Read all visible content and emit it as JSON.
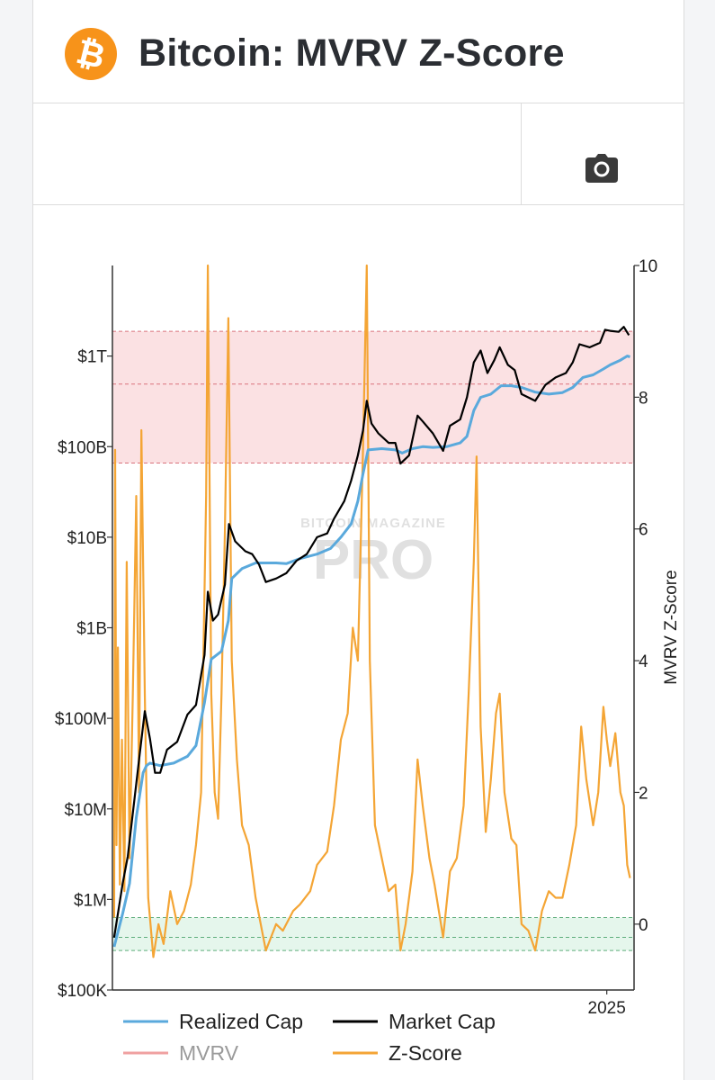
{
  "header": {
    "title": "Bitcoin: MVRV Z-Score",
    "logo_icon": "bitcoin-logo-icon",
    "logo_glyph": "₿"
  },
  "toolbar": {
    "camera_icon": "camera-icon"
  },
  "colors": {
    "realized": "#5aa9dc",
    "market": "#000000",
    "mvrv": "#f0a0a0",
    "zscore": "#f4a535",
    "red_zone": "#fbe1e3",
    "green_zone": "#e5f6ec",
    "btc_orange": "#f7931a"
  },
  "watermark": {
    "line1": "BITCOIN MAGAZINE",
    "line2": "PRO"
  },
  "chart_data": {
    "type": "line",
    "title": "Bitcoin: MVRV Z-Score",
    "left_axis": {
      "scale": "log",
      "range": [
        100000,
        10000000000000
      ],
      "ticks": [
        {
          "value": 100000,
          "label": "$100K"
        },
        {
          "value": 1000000,
          "label": "$1M"
        },
        {
          "value": 10000000,
          "label": "$10M"
        },
        {
          "value": 100000000,
          "label": "$100M"
        },
        {
          "value": 1000000000,
          "label": "$1B"
        },
        {
          "value": 10000000000,
          "label": "$10B"
        },
        {
          "value": 100000000000,
          "label": "$100B"
        },
        {
          "value": 1000000000000,
          "label": "$1T"
        }
      ]
    },
    "right_axis": {
      "label": "MVRV Z-Score",
      "range": [
        -1,
        10
      ],
      "ticks": [
        {
          "value": 0,
          "label": "0"
        },
        {
          "value": 2,
          "label": "2"
        },
        {
          "value": 4,
          "label": "4"
        },
        {
          "value": 6,
          "label": "6"
        },
        {
          "value": 8,
          "label": "8"
        },
        {
          "value": 10,
          "label": "10"
        }
      ]
    },
    "x_axis": {
      "range": [
        2010.5,
        2025.8
      ],
      "ticks": [
        {
          "value": 2025,
          "label": "2025"
        }
      ]
    },
    "bands": [
      {
        "name": "overvalued-zone",
        "z_from": 7,
        "z_to": 9,
        "mid": 8.2,
        "color": "red"
      },
      {
        "name": "undervalued-zone",
        "z_from": -0.4,
        "z_to": 0.1,
        "mid": -0.2,
        "color": "green"
      }
    ],
    "legend": [
      {
        "name": "Realized Cap",
        "color": "#5aa9dc"
      },
      {
        "name": "Market Cap",
        "color": "#000000"
      },
      {
        "name": "MVRV",
        "color": "#f0a0a0"
      },
      {
        "name": "Z-Score",
        "color": "#f4a535"
      }
    ],
    "series": [
      {
        "name": "Market Cap",
        "points": [
          [
            2010.55,
            380000
          ],
          [
            2010.8,
            1500000
          ],
          [
            2010.95,
            3000000
          ],
          [
            2011.1,
            9000000
          ],
          [
            2011.3,
            40000000
          ],
          [
            2011.45,
            120000000
          ],
          [
            2011.6,
            60000000
          ],
          [
            2011.75,
            25000000
          ],
          [
            2011.9,
            25000000
          ],
          [
            2012.1,
            45000000
          ],
          [
            2012.4,
            55000000
          ],
          [
            2012.7,
            110000000
          ],
          [
            2012.95,
            140000000
          ],
          [
            2013.2,
            500000000
          ],
          [
            2013.3,
            2500000000
          ],
          [
            2013.45,
            1200000000
          ],
          [
            2013.6,
            1400000000
          ],
          [
            2013.8,
            3000000000
          ],
          [
            2013.92,
            14000000000
          ],
          [
            2014.1,
            9000000000
          ],
          [
            2014.4,
            7000000000
          ],
          [
            2014.6,
            6500000000
          ],
          [
            2014.8,
            5000000000
          ],
          [
            2015.0,
            3200000000
          ],
          [
            2015.3,
            3500000000
          ],
          [
            2015.6,
            4000000000
          ],
          [
            2015.9,
            5500000000
          ],
          [
            2016.2,
            6500000000
          ],
          [
            2016.5,
            10000000000
          ],
          [
            2016.8,
            11000000000
          ],
          [
            2017.0,
            16000000000
          ],
          [
            2017.3,
            25000000000
          ],
          [
            2017.5,
            42000000000
          ],
          [
            2017.7,
            80000000000
          ],
          [
            2017.85,
            150000000000
          ],
          [
            2017.96,
            320000000000
          ],
          [
            2018.1,
            180000000000
          ],
          [
            2018.3,
            140000000000
          ],
          [
            2018.6,
            110000000000
          ],
          [
            2018.8,
            110000000000
          ],
          [
            2018.95,
            65000000000
          ],
          [
            2019.2,
            80000000000
          ],
          [
            2019.45,
            220000000000
          ],
          [
            2019.6,
            190000000000
          ],
          [
            2019.9,
            140000000000
          ],
          [
            2020.2,
            90000000000
          ],
          [
            2020.4,
            170000000000
          ],
          [
            2020.7,
            200000000000
          ],
          [
            2020.9,
            350000000000
          ],
          [
            2021.1,
            850000000000
          ],
          [
            2021.3,
            1150000000000
          ],
          [
            2021.5,
            650000000000
          ],
          [
            2021.7,
            900000000000
          ],
          [
            2021.86,
            1250000000000
          ],
          [
            2022.1,
            800000000000
          ],
          [
            2022.3,
            700000000000
          ],
          [
            2022.5,
            380000000000
          ],
          [
            2022.9,
            320000000000
          ],
          [
            2023.2,
            480000000000
          ],
          [
            2023.5,
            580000000000
          ],
          [
            2023.8,
            650000000000
          ],
          [
            2024.0,
            850000000000
          ],
          [
            2024.2,
            1350000000000
          ],
          [
            2024.5,
            1250000000000
          ],
          [
            2024.8,
            1400000000000
          ],
          [
            2024.95,
            1950000000000
          ],
          [
            2025.1,
            1900000000000
          ],
          [
            2025.35,
            1850000000000
          ],
          [
            2025.5,
            2100000000000
          ],
          [
            2025.65,
            1700000000000
          ]
        ]
      },
      {
        "name": "Realized Cap",
        "points": [
          [
            2010.55,
            300000
          ],
          [
            2010.8,
            700000
          ],
          [
            2011.0,
            1500000
          ],
          [
            2011.2,
            8000000
          ],
          [
            2011.4,
            25000000
          ],
          [
            2011.5,
            30000000
          ],
          [
            2011.6,
            32000000
          ],
          [
            2011.9,
            30000000
          ],
          [
            2012.3,
            32000000
          ],
          [
            2012.7,
            38000000
          ],
          [
            2012.95,
            50000000
          ],
          [
            2013.2,
            150000000
          ],
          [
            2013.4,
            450000000
          ],
          [
            2013.7,
            550000000
          ],
          [
            2013.9,
            1200000000
          ],
          [
            2014.0,
            3500000000
          ],
          [
            2014.3,
            4500000000
          ],
          [
            2014.7,
            5200000000
          ],
          [
            2015.3,
            5200000000
          ],
          [
            2015.6,
            5100000000
          ],
          [
            2016.0,
            5800000000
          ],
          [
            2016.5,
            6500000000
          ],
          [
            2016.9,
            7500000000
          ],
          [
            2017.2,
            10000000000
          ],
          [
            2017.5,
            14000000000
          ],
          [
            2017.7,
            25000000000
          ],
          [
            2017.85,
            50000000000
          ],
          [
            2018.0,
            92000000000
          ],
          [
            2018.4,
            95000000000
          ],
          [
            2018.8,
            92000000000
          ],
          [
            2019.0,
            85000000000
          ],
          [
            2019.3,
            95000000000
          ],
          [
            2019.6,
            100000000000
          ],
          [
            2019.9,
            98000000000
          ],
          [
            2020.3,
            100000000000
          ],
          [
            2020.7,
            110000000000
          ],
          [
            2020.9,
            130000000000
          ],
          [
            2021.1,
            250000000000
          ],
          [
            2021.3,
            350000000000
          ],
          [
            2021.6,
            380000000000
          ],
          [
            2021.9,
            470000000000
          ],
          [
            2022.2,
            470000000000
          ],
          [
            2022.5,
            450000000000
          ],
          [
            2022.9,
            400000000000
          ],
          [
            2023.3,
            380000000000
          ],
          [
            2023.7,
            395000000000
          ],
          [
            2024.0,
            450000000000
          ],
          [
            2024.3,
            580000000000
          ],
          [
            2024.6,
            620000000000
          ],
          [
            2024.9,
            720000000000
          ],
          [
            2025.1,
            800000000000
          ],
          [
            2025.4,
            900000000000
          ],
          [
            2025.6,
            1000000000000
          ],
          [
            2025.68,
            980000000000
          ]
        ]
      },
      {
        "name": "Z-Score",
        "points": [
          [
            2010.55,
            0.1
          ],
          [
            2010.58,
            7.2
          ],
          [
            2010.62,
            1.2
          ],
          [
            2010.66,
            4.2
          ],
          [
            2010.72,
            0.6
          ],
          [
            2010.78,
            2.8
          ],
          [
            2010.85,
            0.5
          ],
          [
            2010.92,
            5.5
          ],
          [
            2011.0,
            1.0
          ],
          [
            2011.1,
            3.5
          ],
          [
            2011.2,
            6.5
          ],
          [
            2011.28,
            2.0
          ],
          [
            2011.35,
            7.5
          ],
          [
            2011.45,
            3.5
          ],
          [
            2011.55,
            0.4
          ],
          [
            2011.7,
            -0.5
          ],
          [
            2011.85,
            0.0
          ],
          [
            2012.0,
            -0.3
          ],
          [
            2012.2,
            0.5
          ],
          [
            2012.4,
            0.0
          ],
          [
            2012.6,
            0.2
          ],
          [
            2012.8,
            0.6
          ],
          [
            2012.95,
            1.2
          ],
          [
            2013.1,
            2.0
          ],
          [
            2013.25,
            6.5
          ],
          [
            2013.3,
            10.0
          ],
          [
            2013.4,
            3.5
          ],
          [
            2013.5,
            2.0
          ],
          [
            2013.6,
            1.6
          ],
          [
            2013.7,
            3.5
          ],
          [
            2013.8,
            6.0
          ],
          [
            2013.9,
            9.2
          ],
          [
            2014.0,
            4.0
          ],
          [
            2014.15,
            2.5
          ],
          [
            2014.3,
            1.5
          ],
          [
            2014.5,
            1.2
          ],
          [
            2014.7,
            0.4
          ],
          [
            2014.85,
            0.0
          ],
          [
            2015.0,
            -0.4
          ],
          [
            2015.3,
            0.0
          ],
          [
            2015.5,
            -0.1
          ],
          [
            2015.8,
            0.2
          ],
          [
            2016.0,
            0.3
          ],
          [
            2016.3,
            0.5
          ],
          [
            2016.5,
            0.9
          ],
          [
            2016.8,
            1.1
          ],
          [
            2017.0,
            1.8
          ],
          [
            2017.2,
            2.8
          ],
          [
            2017.4,
            3.2
          ],
          [
            2017.55,
            4.5
          ],
          [
            2017.7,
            4.0
          ],
          [
            2017.85,
            7.2
          ],
          [
            2017.96,
            10.0
          ],
          [
            2018.05,
            4.0
          ],
          [
            2018.2,
            1.5
          ],
          [
            2018.4,
            1.0
          ],
          [
            2018.6,
            0.5
          ],
          [
            2018.8,
            0.6
          ],
          [
            2018.95,
            -0.4
          ],
          [
            2019.1,
            0.0
          ],
          [
            2019.3,
            0.8
          ],
          [
            2019.45,
            2.5
          ],
          [
            2019.6,
            1.8
          ],
          [
            2019.8,
            1.0
          ],
          [
            2019.95,
            0.6
          ],
          [
            2020.2,
            -0.2
          ],
          [
            2020.4,
            0.8
          ],
          [
            2020.6,
            1.0
          ],
          [
            2020.8,
            1.8
          ],
          [
            2020.95,
            3.5
          ],
          [
            2021.1,
            5.5
          ],
          [
            2021.18,
            7.1
          ],
          [
            2021.3,
            3.0
          ],
          [
            2021.45,
            1.4
          ],
          [
            2021.6,
            2.2
          ],
          [
            2021.75,
            3.2
          ],
          [
            2021.86,
            3.5
          ],
          [
            2022.0,
            2.0
          ],
          [
            2022.2,
            1.3
          ],
          [
            2022.35,
            1.2
          ],
          [
            2022.5,
            0.0
          ],
          [
            2022.7,
            -0.1
          ],
          [
            2022.9,
            -0.4
          ],
          [
            2023.1,
            0.2
          ],
          [
            2023.3,
            0.5
          ],
          [
            2023.5,
            0.4
          ],
          [
            2023.7,
            0.4
          ],
          [
            2023.9,
            0.9
          ],
          [
            2024.1,
            1.5
          ],
          [
            2024.25,
            3.0
          ],
          [
            2024.4,
            2.2
          ],
          [
            2024.6,
            1.5
          ],
          [
            2024.75,
            2.0
          ],
          [
            2024.9,
            3.3
          ],
          [
            2025.0,
            2.8
          ],
          [
            2025.1,
            2.4
          ],
          [
            2025.25,
            2.9
          ],
          [
            2025.4,
            2.0
          ],
          [
            2025.5,
            1.8
          ],
          [
            2025.6,
            0.9
          ],
          [
            2025.68,
            0.7
          ]
        ]
      }
    ]
  }
}
